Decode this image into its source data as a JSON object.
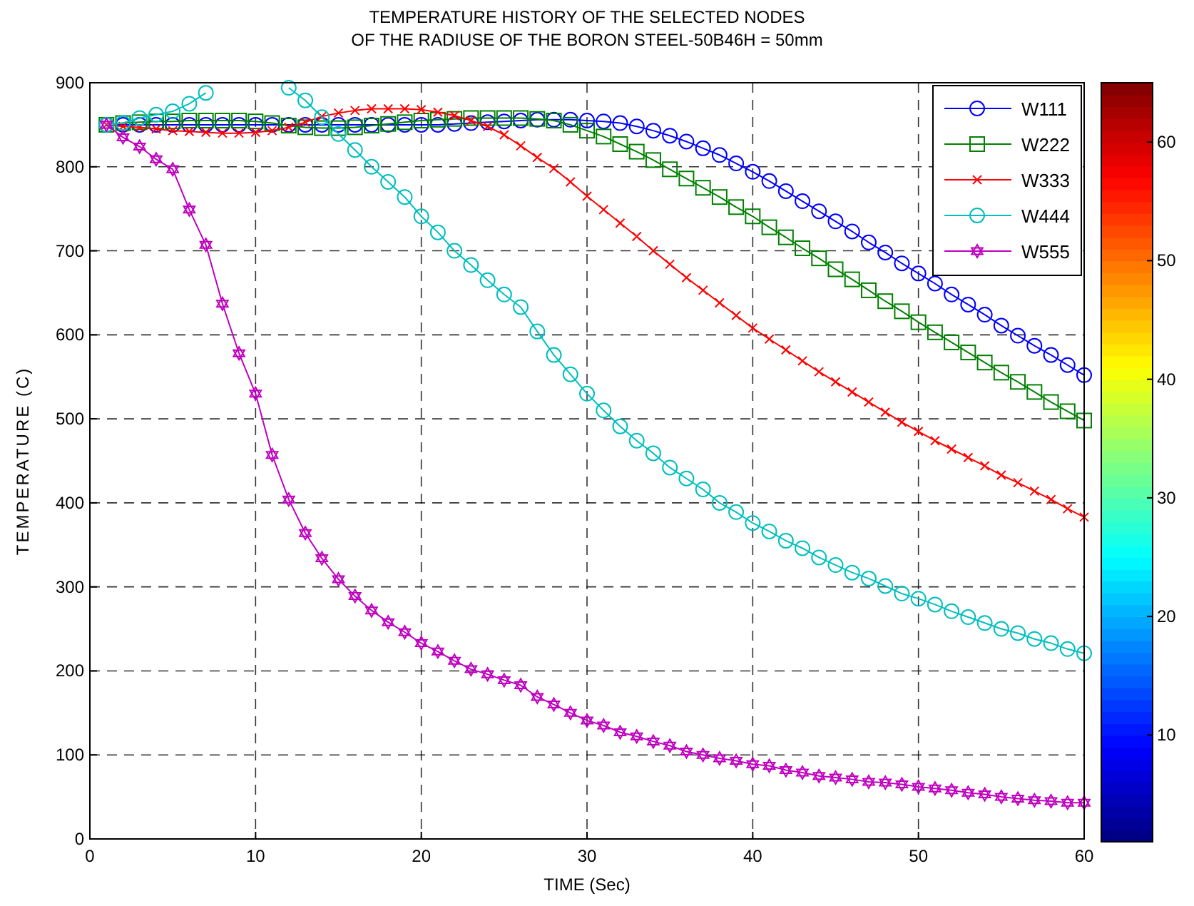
{
  "chart_data": {
    "type": "line",
    "title": "TEMPERATURE HISTORY OF THE SELECTED NODES\nOF THE RADIUSE OF THE BORON STEEL-50B46H = 50mm",
    "xlabel": "TIME (Sec)",
    "ylabel": "TEMPERATURE (C)",
    "x": [
      1,
      2,
      3,
      4,
      5,
      6,
      7,
      8,
      9,
      10,
      11,
      12,
      13,
      14,
      15,
      16,
      17,
      18,
      19,
      20,
      21,
      22,
      23,
      24,
      25,
      26,
      27,
      28,
      29,
      30,
      31,
      32,
      33,
      34,
      35,
      36,
      37,
      38,
      39,
      40,
      41,
      42,
      43,
      44,
      45,
      46,
      47,
      48,
      49,
      50,
      51,
      52,
      53,
      54,
      55,
      56,
      57,
      58,
      59,
      60
    ],
    "xlim": [
      0,
      60
    ],
    "xticks": [
      0,
      10,
      20,
      30,
      40,
      50,
      60
    ],
    "ylim": [
      0,
      900
    ],
    "yticks": [
      0,
      100,
      200,
      300,
      400,
      500,
      600,
      700,
      800,
      900
    ],
    "grid": true,
    "line_style": "solid",
    "legend": "top right",
    "clim": [
      1,
      65
    ],
    "cticks": [
      10,
      20,
      30,
      40,
      50,
      60
    ],
    "series": [
      {
        "name": "W111",
        "color": "#0000ff",
        "marker": "circle",
        "values": [
          850,
          850,
          850,
          850,
          850,
          850,
          850,
          850,
          850,
          850,
          850,
          850,
          850,
          850,
          850,
          850,
          850,
          850,
          850,
          850,
          850,
          851,
          852,
          853,
          854,
          855,
          856,
          856,
          856,
          855,
          854,
          852,
          848,
          843,
          837,
          830,
          822,
          814,
          804,
          794,
          783,
          771,
          759,
          747,
          735,
          723,
          710,
          698,
          685,
          673,
          661,
          648,
          636,
          624,
          611,
          599,
          587,
          576,
          564,
          552
        ]
      },
      {
        "name": "W222",
        "color": "#008000",
        "marker": "square",
        "values": [
          850,
          852,
          853,
          854,
          854,
          855,
          855,
          855,
          855,
          854,
          852,
          849,
          847,
          846,
          846,
          847,
          849,
          851,
          853,
          855,
          856,
          857,
          858,
          858,
          858,
          858,
          857,
          855,
          850,
          843,
          836,
          827,
          818,
          808,
          797,
          786,
          775,
          764,
          752,
          741,
          728,
          716,
          703,
          691,
          678,
          666,
          653,
          640,
          628,
          615,
          603,
          591,
          579,
          567,
          555,
          544,
          532,
          520,
          509,
          498
        ]
      },
      {
        "name": "W333",
        "color": "#ff0000",
        "marker": "cross",
        "values": [
          850,
          848,
          847,
          845,
          843,
          842,
          841,
          840,
          840,
          841,
          843,
          847,
          853,
          860,
          864,
          867,
          869,
          869,
          869,
          868,
          865,
          861,
          855,
          848,
          838,
          825,
          811,
          798,
          782,
          765,
          749,
          733,
          717,
          700,
          684,
          668,
          653,
          638,
          623,
          608,
          595,
          582,
          569,
          556,
          544,
          532,
          520,
          508,
          496,
          485,
          474,
          464,
          454,
          444,
          433,
          424,
          414,
          404,
          393,
          383
        ]
      },
      {
        "name": "W444",
        "color": "#00bfbf",
        "marker": "circle",
        "values": [
          850,
          852,
          858,
          862,
          866,
          875,
          888,
          null,
          null,
          null,
          null,
          894,
          879,
          859,
          839,
          820,
          800,
          782,
          764,
          741,
          722,
          700,
          683,
          665,
          648,
          633,
          604,
          576,
          553,
          530,
          510,
          491,
          474,
          459,
          442,
          429,
          416,
          400,
          389,
          376,
          366,
          355,
          346,
          335,
          326,
          317,
          310,
          301,
          292,
          286,
          279,
          271,
          264,
          257,
          250,
          245,
          238,
          233,
          226,
          221
        ]
      },
      {
        "name": "W555",
        "color": "#bf00bf",
        "marker": "star",
        "values": [
          850,
          835,
          824,
          809,
          797,
          749,
          707,
          637,
          578,
          530,
          457,
          404,
          364,
          334,
          309,
          289,
          272,
          258,
          246,
          233,
          223,
          212,
          202,
          196,
          189,
          183,
          169,
          160,
          150,
          141,
          135,
          127,
          122,
          116,
          111,
          104,
          100,
          96,
          93,
          89,
          87,
          82,
          79,
          75,
          73,
          71,
          68,
          67,
          65,
          62,
          60,
          58,
          55,
          53,
          50,
          48,
          46,
          45,
          43,
          43
        ]
      }
    ]
  }
}
